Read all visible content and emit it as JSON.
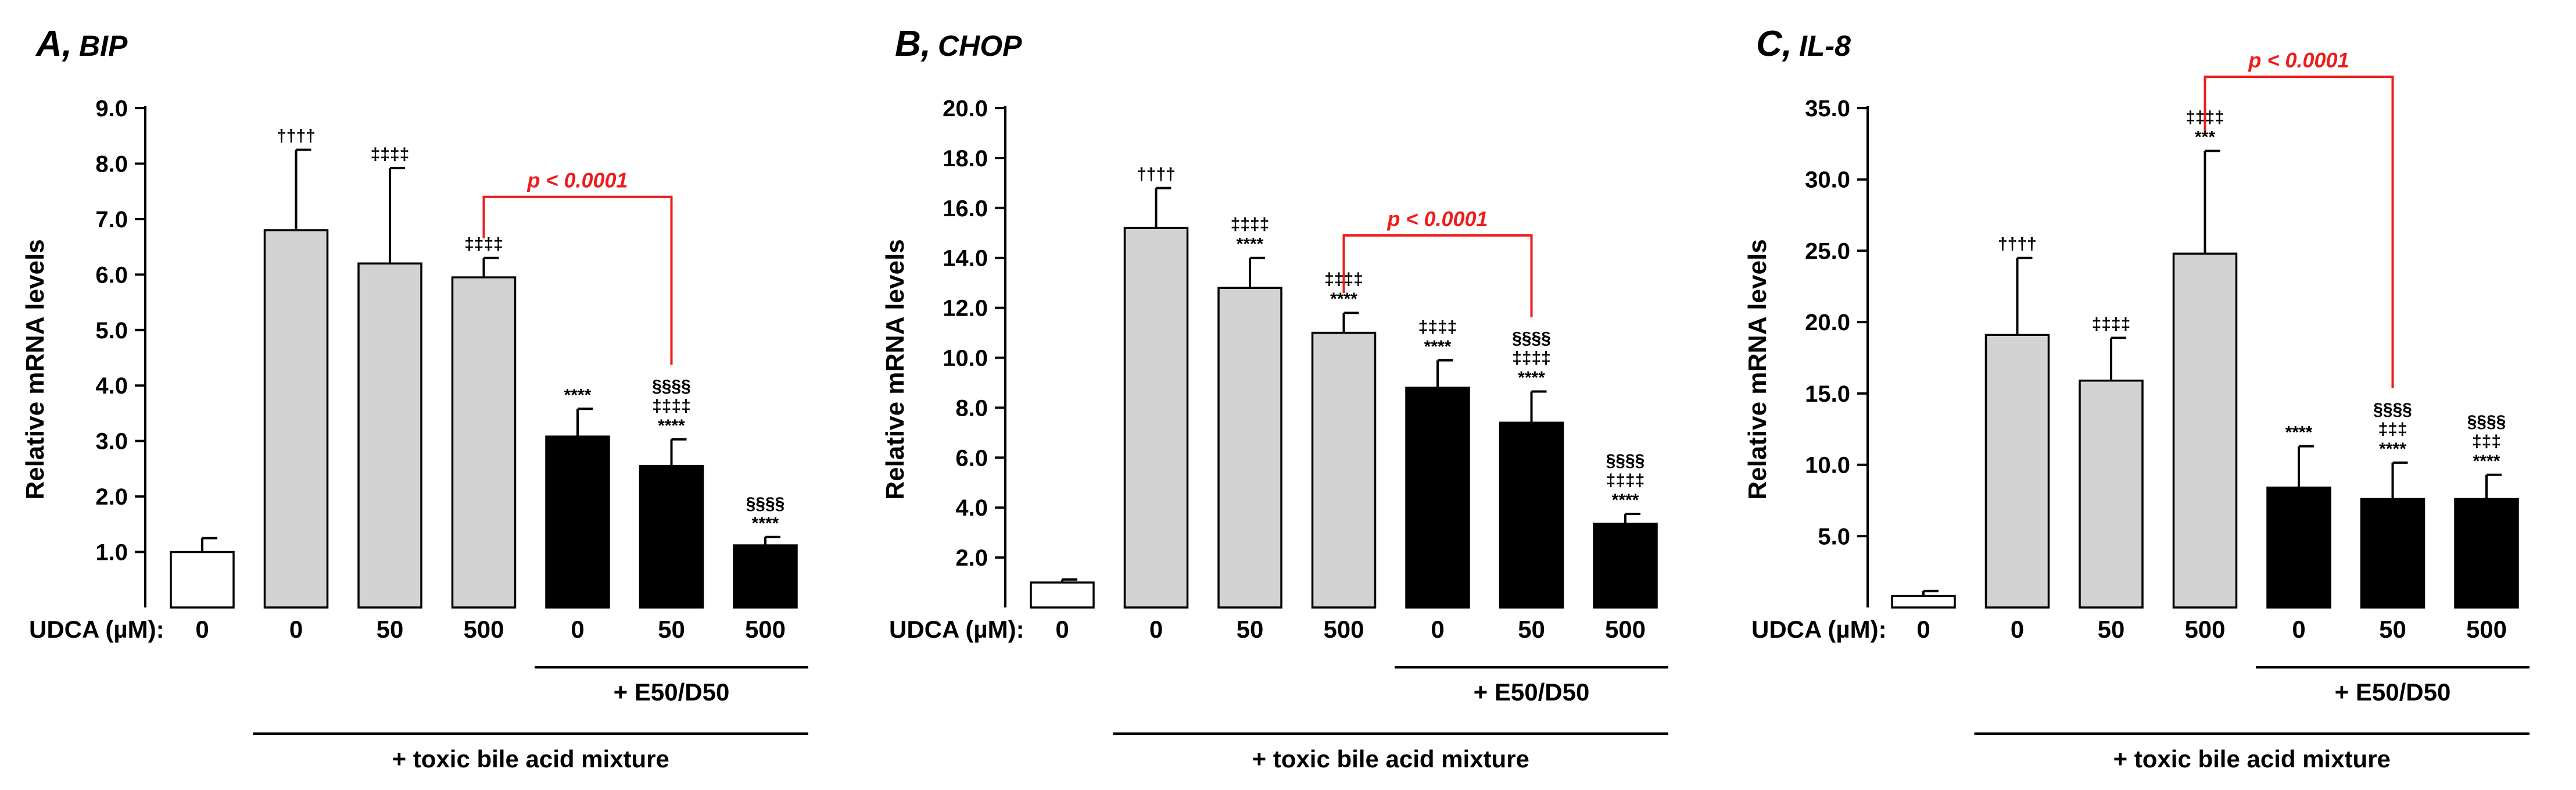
{
  "colors": {
    "control": "#ffffff",
    "bile_acid": "#d3d3d3",
    "e50d50": "#000000",
    "bracket": "#ee1c1c"
  },
  "x_axis_label": "UDCA (µM):",
  "group_labels": {
    "e50d50": "+ E50/D50",
    "toxic": "+ toxic bile acid mixture"
  },
  "chart_data": [
    {
      "type": "bar",
      "panel_letter": "A,",
      "gene": "BIP",
      "ylabel": "Relative mRNA levels",
      "ylim": [
        0,
        9.0
      ],
      "yticks": [
        "1.0",
        "2.0",
        "3.0",
        "4.0",
        "5.0",
        "6.0",
        "7.0",
        "8.0",
        "9.0"
      ],
      "categories": [
        "0",
        "0",
        "50",
        "500",
        "0",
        "50",
        "500"
      ],
      "values": [
        1.0,
        6.8,
        6.2,
        5.95,
        3.08,
        2.55,
        1.12
      ],
      "errors": [
        0.25,
        1.45,
        1.72,
        0.35,
        0.5,
        0.48,
        0.15
      ],
      "bar_groups": [
        "control",
        "bile_acid",
        "bile_acid",
        "bile_acid",
        "e50d50",
        "e50d50",
        "e50d50"
      ],
      "sig_labels": [
        [],
        [
          "††††"
        ],
        [
          "‡‡‡‡"
        ],
        [
          "‡‡‡‡"
        ],
        [
          "****"
        ],
        [
          "§§§§",
          "‡‡‡‡",
          "****"
        ],
        [
          "§§§§",
          "****"
        ]
      ],
      "p_bracket": {
        "from": 3,
        "to": 5,
        "level": 7.4,
        "label": "p < 0.0001"
      }
    },
    {
      "type": "bar",
      "panel_letter": "B,",
      "gene": "CHOP",
      "ylabel": "Relative mRNA levels",
      "ylim": [
        0,
        20.0
      ],
      "yticks": [
        "2.0",
        "4.0",
        "6.0",
        "8.0",
        "10.0",
        "12.0",
        "14.0",
        "16.0",
        "18.0",
        "20.0"
      ],
      "categories": [
        "0",
        "0",
        "50",
        "500",
        "0",
        "50",
        "500"
      ],
      "values": [
        1.0,
        15.2,
        12.8,
        11.0,
        8.8,
        7.4,
        3.35
      ],
      "errors": [
        0.12,
        1.6,
        1.2,
        0.8,
        1.1,
        1.25,
        0.4
      ],
      "bar_groups": [
        "control",
        "bile_acid",
        "bile_acid",
        "bile_acid",
        "e50d50",
        "e50d50",
        "e50d50"
      ],
      "sig_labels": [
        [],
        [
          "††††"
        ],
        [
          "‡‡‡‡",
          "****"
        ],
        [
          "‡‡‡‡",
          "****"
        ],
        [
          "‡‡‡‡",
          "****"
        ],
        [
          "§§§§",
          "‡‡‡‡",
          "****"
        ],
        [
          "§§§§",
          "‡‡‡‡",
          "****"
        ]
      ],
      "p_bracket": {
        "from": 3,
        "to": 5,
        "level": 14.9,
        "label": "p < 0.0001"
      }
    },
    {
      "type": "bar",
      "panel_letter": "C,",
      "gene": "IL-8",
      "ylabel": "Relative mRNA levels",
      "ylim": [
        0,
        35.0
      ],
      "yticks": [
        "5.0",
        "10.0",
        "15.0",
        "20.0",
        "25.0",
        "30.0",
        "35.0"
      ],
      "categories": [
        "0",
        "0",
        "50",
        "500",
        "0",
        "50",
        "500"
      ],
      "values": [
        0.8,
        19.1,
        15.9,
        24.8,
        8.4,
        7.6,
        7.6
      ],
      "errors": [
        0.35,
        5.4,
        3.0,
        7.2,
        2.9,
        2.55,
        1.7
      ],
      "bar_groups": [
        "control",
        "bile_acid",
        "bile_acid",
        "bile_acid",
        "e50d50",
        "e50d50",
        "e50d50"
      ],
      "sig_labels": [
        [],
        [
          "††††"
        ],
        [
          "‡‡‡‡"
        ],
        [
          "‡‡‡‡",
          "***"
        ],
        [
          "****"
        ],
        [
          "§§§§",
          "‡‡‡",
          "****"
        ],
        [
          "§§§§",
          "‡‡‡",
          "****"
        ]
      ],
      "p_bracket": {
        "from": 3,
        "to": 5,
        "level": 37.2,
        "label": "p < 0.0001"
      }
    }
  ]
}
